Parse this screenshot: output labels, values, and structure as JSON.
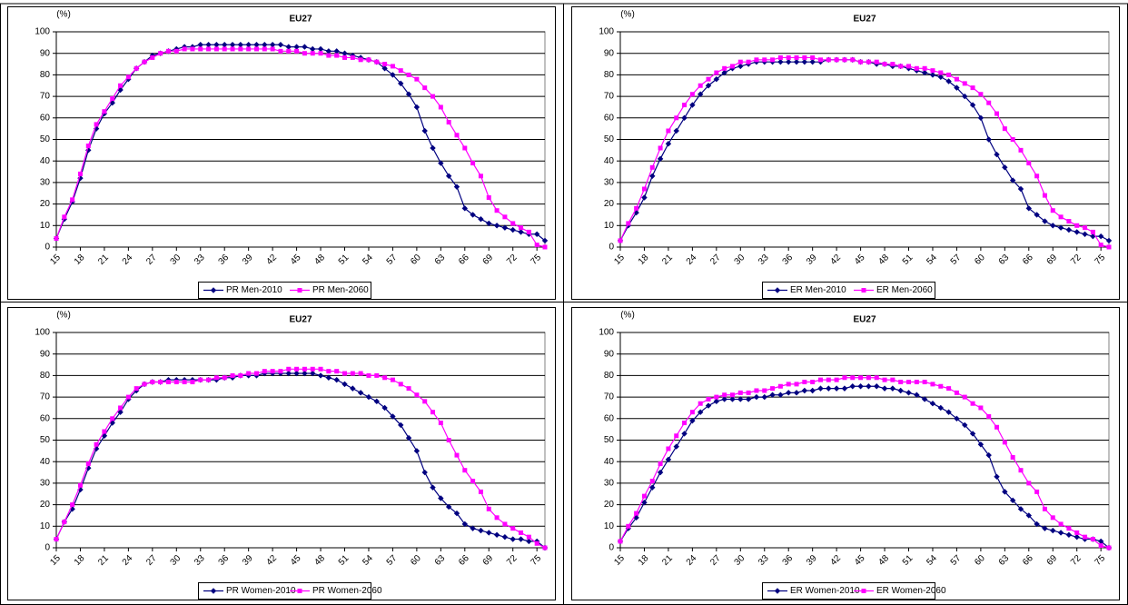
{
  "chart_data": [
    {
      "type": "line",
      "title": "EU27",
      "ylabel": "(%)",
      "x": [
        15,
        16,
        17,
        18,
        19,
        20,
        21,
        22,
        23,
        24,
        25,
        26,
        27,
        28,
        29,
        30,
        31,
        32,
        33,
        34,
        35,
        36,
        37,
        38,
        39,
        40,
        41,
        42,
        43,
        44,
        45,
        46,
        47,
        48,
        49,
        50,
        51,
        52,
        53,
        54,
        55,
        56,
        57,
        58,
        59,
        60,
        61,
        62,
        63,
        64,
        65,
        66,
        67,
        68,
        69,
        70,
        71,
        72,
        73,
        74,
        75,
        76
      ],
      "xlim": [
        15,
        76
      ],
      "xticks": [
        15,
        18,
        21,
        24,
        27,
        30,
        33,
        36,
        39,
        42,
        45,
        48,
        51,
        54,
        57,
        60,
        63,
        66,
        69,
        72,
        75
      ],
      "ylim": [
        0,
        100
      ],
      "yticks": [
        0,
        10,
        20,
        30,
        40,
        50,
        60,
        70,
        80,
        90,
        100
      ],
      "grid": true,
      "legend": "bottom",
      "series": [
        {
          "name": "PR Men-2010",
          "color": "#000080",
          "marker": "diamond",
          "values": [
            4,
            13,
            21,
            32,
            45,
            55,
            62,
            67,
            73,
            78,
            83,
            86,
            89,
            90,
            91,
            92,
            93,
            93,
            94,
            94,
            94,
            94,
            94,
            94,
            94,
            94,
            94,
            94,
            94,
            93,
            93,
            93,
            92,
            92,
            91,
            91,
            90,
            89,
            88,
            87,
            86,
            83,
            80,
            76,
            71,
            65,
            54,
            46,
            39,
            33,
            28,
            18,
            15,
            13,
            11,
            10,
            9,
            8,
            7,
            6,
            6,
            3
          ]
        },
        {
          "name": "PR Men-2060",
          "color": "#ff00ff",
          "marker": "square",
          "values": [
            4,
            14,
            22,
            34,
            47,
            57,
            63,
            69,
            75,
            79,
            83,
            86,
            88,
            90,
            91,
            91,
            92,
            92,
            92,
            92,
            92,
            92,
            92,
            92,
            92,
            92,
            92,
            92,
            91,
            91,
            91,
            90,
            90,
            90,
            89,
            89,
            88,
            88,
            87,
            87,
            86,
            85,
            84,
            82,
            80,
            78,
            74,
            70,
            65,
            58,
            52,
            46,
            39,
            33,
            23,
            17,
            14,
            11,
            9,
            7,
            1,
            0
          ]
        }
      ]
    },
    {
      "type": "line",
      "title": "EU27",
      "ylabel": "(%)",
      "x": [
        15,
        16,
        17,
        18,
        19,
        20,
        21,
        22,
        23,
        24,
        25,
        26,
        27,
        28,
        29,
        30,
        31,
        32,
        33,
        34,
        35,
        36,
        37,
        38,
        39,
        40,
        41,
        42,
        43,
        44,
        45,
        46,
        47,
        48,
        49,
        50,
        51,
        52,
        53,
        54,
        55,
        56,
        57,
        58,
        59,
        60,
        61,
        62,
        63,
        64,
        65,
        66,
        67,
        68,
        69,
        70,
        71,
        72,
        73,
        74,
        75,
        76
      ],
      "xlim": [
        15,
        76
      ],
      "xticks": [
        15,
        18,
        21,
        24,
        27,
        30,
        33,
        36,
        39,
        42,
        45,
        48,
        51,
        54,
        57,
        60,
        63,
        66,
        69,
        72,
        75
      ],
      "ylim": [
        0,
        100
      ],
      "yticks": [
        0,
        10,
        20,
        30,
        40,
        50,
        60,
        70,
        80,
        90,
        100
      ],
      "grid": true,
      "legend": "bottom",
      "series": [
        {
          "name": "ER Men-2010",
          "color": "#000080",
          "marker": "diamond",
          "values": [
            3,
            10,
            16,
            23,
            33,
            41,
            48,
            54,
            60,
            66,
            71,
            75,
            78,
            81,
            83,
            84,
            85,
            86,
            86,
            86,
            86,
            86,
            86,
            86,
            86,
            86,
            87,
            87,
            87,
            87,
            86,
            86,
            85,
            85,
            84,
            84,
            83,
            82,
            81,
            80,
            79,
            77,
            74,
            70,
            66,
            60,
            50,
            43,
            37,
            31,
            27,
            18,
            15,
            12,
            10,
            9,
            8,
            7,
            6,
            5,
            5,
            3
          ]
        },
        {
          "name": "ER Men-2060",
          "color": "#ff00ff",
          "marker": "square",
          "values": [
            3,
            11,
            18,
            27,
            37,
            46,
            54,
            60,
            66,
            71,
            75,
            78,
            81,
            83,
            84,
            86,
            86,
            87,
            87,
            87,
            88,
            88,
            88,
            88,
            88,
            87,
            87,
            87,
            87,
            87,
            86,
            86,
            86,
            85,
            85,
            84,
            84,
            83,
            83,
            82,
            81,
            80,
            78,
            76,
            74,
            71,
            67,
            62,
            55,
            50,
            45,
            39,
            33,
            24,
            17,
            14,
            12,
            10,
            9,
            7,
            1,
            0
          ]
        }
      ]
    },
    {
      "type": "line",
      "title": "EU27",
      "ylabel": "(%)",
      "x": [
        15,
        16,
        17,
        18,
        19,
        20,
        21,
        22,
        23,
        24,
        25,
        26,
        27,
        28,
        29,
        30,
        31,
        32,
        33,
        34,
        35,
        36,
        37,
        38,
        39,
        40,
        41,
        42,
        43,
        44,
        45,
        46,
        47,
        48,
        49,
        50,
        51,
        52,
        53,
        54,
        55,
        56,
        57,
        58,
        59,
        60,
        61,
        62,
        63,
        64,
        65,
        66,
        67,
        68,
        69,
        70,
        71,
        72,
        73,
        74,
        75,
        76
      ],
      "xlim": [
        15,
        76
      ],
      "xticks": [
        15,
        18,
        21,
        24,
        27,
        30,
        33,
        36,
        39,
        42,
        45,
        48,
        51,
        54,
        57,
        60,
        63,
        66,
        69,
        72,
        75
      ],
      "ylim": [
        0,
        100
      ],
      "yticks": [
        0,
        10,
        20,
        30,
        40,
        50,
        60,
        70,
        80,
        90,
        100
      ],
      "grid": true,
      "legend": "bottom",
      "series": [
        {
          "name": "PR Women-2010",
          "color": "#000080",
          "marker": "diamond",
          "values": [
            4,
            12,
            18,
            27,
            37,
            46,
            52,
            58,
            63,
            69,
            73,
            76,
            77,
            77,
            78,
            78,
            78,
            78,
            78,
            78,
            78,
            79,
            79,
            80,
            80,
            80,
            81,
            81,
            81,
            81,
            81,
            81,
            81,
            80,
            79,
            78,
            76,
            74,
            72,
            70,
            68,
            65,
            61,
            57,
            51,
            45,
            35,
            28,
            23,
            19,
            16,
            11,
            9,
            8,
            7,
            6,
            5,
            4,
            4,
            3,
            3,
            0
          ]
        },
        {
          "name": "PR Women-2060",
          "color": "#ff00ff",
          "marker": "square",
          "values": [
            4,
            12,
            20,
            29,
            39,
            48,
            54,
            60,
            65,
            70,
            74,
            76,
            77,
            77,
            77,
            77,
            77,
            77,
            78,
            78,
            79,
            79,
            80,
            80,
            81,
            81,
            82,
            82,
            82,
            83,
            83,
            83,
            83,
            83,
            82,
            82,
            81,
            81,
            81,
            80,
            80,
            79,
            78,
            76,
            74,
            71,
            68,
            63,
            58,
            50,
            43,
            36,
            31,
            26,
            18,
            14,
            11,
            9,
            7,
            5,
            2,
            0
          ]
        }
      ]
    },
    {
      "type": "line",
      "title": "EU27",
      "ylabel": "(%)",
      "x": [
        15,
        16,
        17,
        18,
        19,
        20,
        21,
        22,
        23,
        24,
        25,
        26,
        27,
        28,
        29,
        30,
        31,
        32,
        33,
        34,
        35,
        36,
        37,
        38,
        39,
        40,
        41,
        42,
        43,
        44,
        45,
        46,
        47,
        48,
        49,
        50,
        51,
        52,
        53,
        54,
        55,
        56,
        57,
        58,
        59,
        60,
        61,
        62,
        63,
        64,
        65,
        66,
        67,
        68,
        69,
        70,
        71,
        72,
        73,
        74,
        75,
        76
      ],
      "xlim": [
        15,
        76
      ],
      "xticks": [
        15,
        18,
        21,
        24,
        27,
        30,
        33,
        36,
        39,
        42,
        45,
        48,
        51,
        54,
        57,
        60,
        63,
        66,
        69,
        72,
        75
      ],
      "ylim": [
        0,
        100
      ],
      "yticks": [
        0,
        10,
        20,
        30,
        40,
        50,
        60,
        70,
        80,
        90,
        100
      ],
      "grid": true,
      "legend": "bottom",
      "series": [
        {
          "name": "ER Women-2010",
          "color": "#000080",
          "marker": "diamond",
          "values": [
            3,
            9,
            14,
            21,
            28,
            35,
            41,
            47,
            53,
            59,
            63,
            66,
            68,
            69,
            69,
            69,
            69,
            70,
            70,
            71,
            71,
            72,
            72,
            73,
            73,
            74,
            74,
            74,
            74,
            75,
            75,
            75,
            75,
            74,
            74,
            73,
            72,
            71,
            69,
            67,
            65,
            63,
            60,
            57,
            53,
            48,
            43,
            33,
            26,
            22,
            18,
            15,
            11,
            9,
            8,
            7,
            6,
            5,
            4,
            4,
            3,
            0
          ]
        },
        {
          "name": "ER Women-2060",
          "color": "#ff00ff",
          "marker": "square",
          "values": [
            3,
            10,
            16,
            24,
            31,
            39,
            46,
            52,
            58,
            63,
            67,
            69,
            70,
            71,
            71,
            72,
            72,
            73,
            73,
            74,
            75,
            76,
            76,
            77,
            77,
            78,
            78,
            78,
            79,
            79,
            79,
            79,
            79,
            78,
            78,
            77,
            77,
            77,
            77,
            76,
            75,
            74,
            72,
            70,
            67,
            65,
            61,
            56,
            49,
            42,
            36,
            30,
            26,
            18,
            14,
            11,
            9,
            7,
            5,
            4,
            1,
            0
          ]
        }
      ]
    }
  ]
}
